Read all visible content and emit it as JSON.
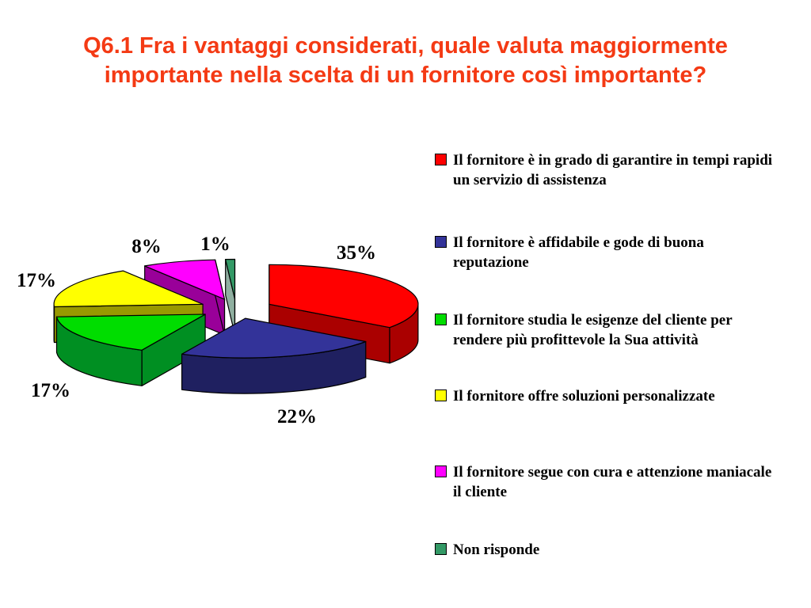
{
  "title": {
    "text": "Q6.1 Fra i vantaggi considerati, quale valuta maggiormente\nimportante nella scelta di un fornitore così importante?",
    "color": "#F43A14"
  },
  "chart_data": {
    "type": "pie",
    "is_3d": true,
    "exploded": true,
    "start_angle_deg": 0,
    "direction": "clockwise",
    "unit": "%",
    "legend_position": "right",
    "title": "",
    "slices": [
      {
        "label": "Il fornitore è in grado di garantire in tempi rapidi\nun servizio di assistenza",
        "value": 35,
        "color": "#FF0000",
        "side_color": "#AA0000"
      },
      {
        "label": "Il fornitore è affidabile e gode di buona\nreputazione",
        "value": 22,
        "color": "#333399",
        "side_color": "#1F2060"
      },
      {
        "label": "Il fornitore studia  le esigenze del cliente per\nrendere più profittevole la Sua attività",
        "value": 17,
        "color": "#00DD00",
        "side_color": "#008F22"
      },
      {
        "label": "Il fornitore offre soluzioni personalizzate",
        "value": 17,
        "color": "#FFFF00",
        "side_color": "#999900"
      },
      {
        "label": "Il fornitore segue con cura e attenzione maniacale\nil cliente",
        "value": 8,
        "color": "#FF00FF",
        "side_color": "#990099"
      },
      {
        "label": "Non risponde",
        "value": 1,
        "color": "#339966",
        "side_color": "#20604280"
      }
    ],
    "data_labels": [
      "35%",
      "22%",
      "17%",
      "17%",
      "8%",
      "1%"
    ]
  }
}
